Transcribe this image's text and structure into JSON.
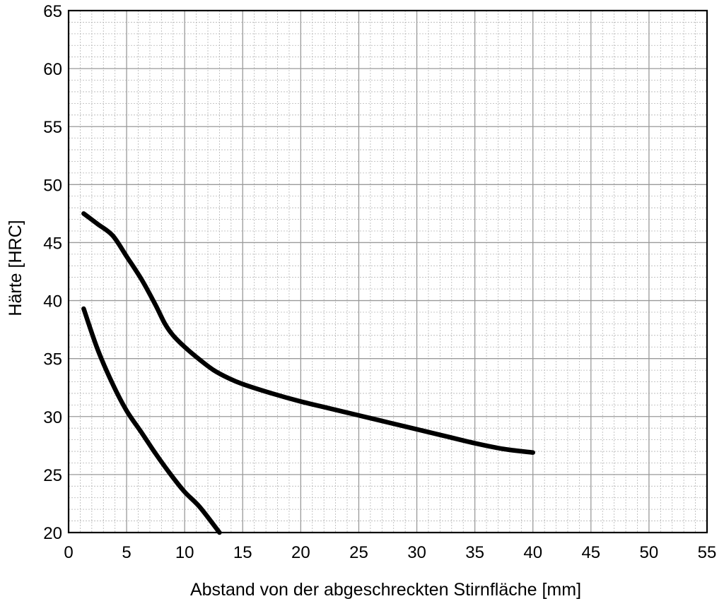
{
  "chart_data": {
    "type": "line",
    "title": "",
    "xlabel": "Abstand von der abgeschreckten Stirnfläche [mm]",
    "ylabel": "Härte [HRC]",
    "xlim": [
      0,
      55
    ],
    "ylim": [
      20,
      65
    ],
    "x_ticks": [
      0,
      5,
      10,
      15,
      20,
      25,
      30,
      35,
      40,
      45,
      50,
      55
    ],
    "y_ticks": [
      20,
      25,
      30,
      35,
      40,
      45,
      50,
      55,
      60,
      65
    ],
    "x_tick_labels": [
      "0",
      "5",
      "10",
      "15",
      "20",
      "25",
      "30",
      "35",
      "40",
      "45",
      "50",
      "55"
    ],
    "y_tick_labels": [
      "20",
      "25",
      "30",
      "35",
      "40",
      "45",
      "50",
      "55",
      "60",
      "65"
    ],
    "grid": true,
    "minor_grid_step": 1,
    "legend": "none",
    "series": [
      {
        "x": [
          1.3,
          2.5,
          3.8,
          5.0,
          6.3,
          7.5,
          8.3,
          9.0,
          10.0,
          11.3,
          12.5,
          13.8,
          15.0,
          17.5,
          20.0,
          22.5,
          25.0,
          27.5,
          30.0,
          32.5,
          35.0,
          37.5,
          40.0
        ],
        "y": [
          47.5,
          46.6,
          45.6,
          43.8,
          41.8,
          39.6,
          38.0,
          37.0,
          36.0,
          34.9,
          34.0,
          33.3,
          32.8,
          32.0,
          31.3,
          30.7,
          30.1,
          29.5,
          28.9,
          28.3,
          27.7,
          27.2,
          26.9
        ],
        "color": "#000000"
      },
      {
        "x": [
          1.3,
          2.5,
          3.8,
          5.0,
          6.3,
          7.5,
          8.8,
          10.0,
          11.3,
          13.0
        ],
        "y": [
          39.3,
          35.8,
          32.8,
          30.5,
          28.6,
          26.8,
          25.0,
          23.5,
          22.2,
          20.0
        ],
        "color": "#000000"
      }
    ]
  }
}
